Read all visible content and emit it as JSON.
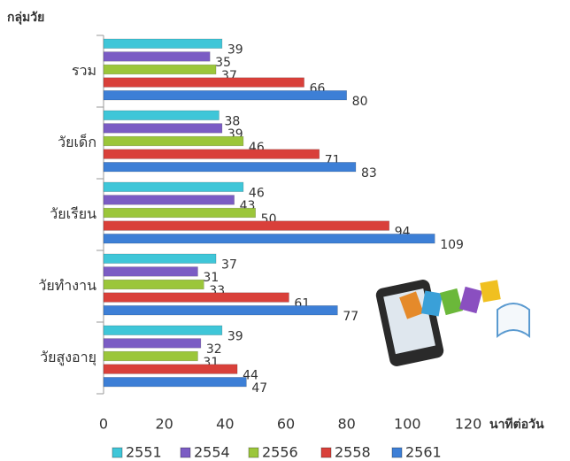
{
  "chart_data": {
    "type": "barh",
    "y_label": "กลุ่มวัย",
    "x_label": "นาทีต่อวัน",
    "categories": [
      "รวม",
      "วัยเด็ก",
      "วัยเรียน",
      "วัยทำงาน",
      "วัยสูงอายุ"
    ],
    "series": [
      {
        "name": "2551",
        "color": "#3fc6d8",
        "values": [
          39,
          38,
          46,
          37,
          39
        ]
      },
      {
        "name": "2554",
        "color": "#7b5cc4",
        "values": [
          35,
          39,
          43,
          31,
          32
        ]
      },
      {
        "name": "2556",
        "color": "#9bc63a",
        "values": [
          37,
          46,
          50,
          33,
          31
        ]
      },
      {
        "name": "2558",
        "color": "#d9403a",
        "values": [
          66,
          71,
          94,
          61,
          44
        ]
      },
      {
        "name": "2561",
        "color": "#3d7fd6",
        "values": [
          80,
          83,
          109,
          77,
          47
        ]
      }
    ],
    "xlim": [
      0,
      120
    ],
    "xticks": [
      0,
      20,
      40,
      60,
      80,
      100,
      120
    ],
    "legend": "bottom"
  }
}
